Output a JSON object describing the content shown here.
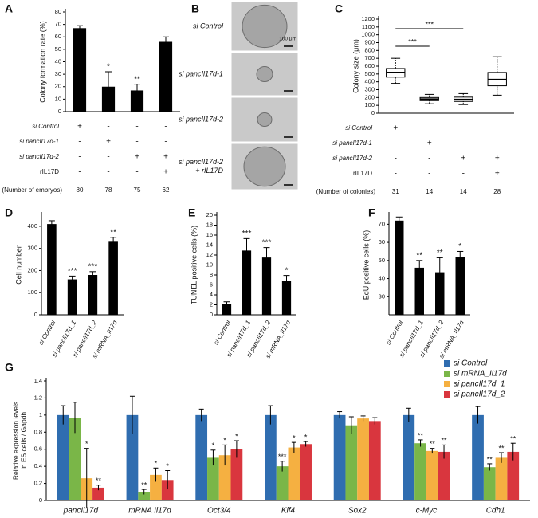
{
  "chart_data": [
    {
      "type": "bar",
      "label": "A",
      "ylabel": "Colony formation rate (%)",
      "color": "#000000",
      "values": [
        67,
        20,
        17,
        56
      ],
      "errors": [
        2,
        12,
        5,
        4
      ],
      "annotations": [
        null,
        "*",
        "**",
        null
      ],
      "ylim": [
        0,
        80
      ],
      "yticks": [
        0,
        10,
        20,
        30,
        40,
        50,
        60,
        70,
        80
      ],
      "conditions": [
        {
          "label": "si Control",
          "marks": [
            "+",
            "-",
            "-",
            "-"
          ]
        },
        {
          "label": "si pancIl17d-1",
          "marks": [
            "-",
            "+",
            "-",
            "-"
          ]
        },
        {
          "label": "si pancIl17d-2",
          "marks": [
            "-",
            "-",
            "+",
            "+"
          ]
        },
        {
          "label": "rIL17D",
          "marks": [
            "-",
            "-",
            "-",
            "+"
          ]
        }
      ],
      "count_label": "(Number of embryos)",
      "counts": [
        80,
        78,
        75,
        62
      ]
    },
    {
      "type": "image-grid",
      "label": "B",
      "scale_bar": "100 μm",
      "rows": [
        {
          "label": [
            "si Control"
          ]
        },
        {
          "label": [
            "si pancIl17d-1"
          ]
        },
        {
          "label": [
            "si pancIl17d-2"
          ]
        },
        {
          "label": [
            "si pancIl17d-2",
            "+ rIL17D"
          ]
        }
      ]
    },
    {
      "type": "box",
      "label": "C",
      "ylabel": "Colony size (μm)",
      "min": [
        380,
        120,
        110,
        230
      ],
      "q1": [
        460,
        160,
        150,
        350
      ],
      "median": [
        520,
        180,
        175,
        430
      ],
      "q3": [
        570,
        200,
        205,
        520
      ],
      "max": [
        700,
        240,
        250,
        720
      ],
      "brackets": [
        {
          "pair": [
            0,
            1
          ],
          "label": "***"
        },
        {
          "pair": [
            0,
            2
          ],
          "label": "***"
        }
      ],
      "ylim": [
        0,
        1200
      ],
      "yticks": [
        0,
        100,
        200,
        300,
        400,
        500,
        600,
        700,
        800,
        900,
        1000,
        1100,
        1200
      ],
      "conditions": [
        {
          "label": "si Control",
          "marks": [
            "+",
            "-",
            "-",
            "-"
          ]
        },
        {
          "label": "si pancIl17d-1",
          "marks": [
            "-",
            "+",
            "-",
            "-"
          ]
        },
        {
          "label": "si pancIl17d-2",
          "marks": [
            "-",
            "-",
            "+",
            "+"
          ]
        },
        {
          "label": "rIL17D",
          "marks": [
            "-",
            "-",
            "-",
            "+"
          ]
        }
      ],
      "count_label": "(Number of colonies)",
      "counts": [
        31,
        14,
        14,
        28
      ]
    },
    {
      "type": "bar",
      "label": "D",
      "ylabel": "Cell number",
      "color": "#000000",
      "categories": [
        "si Control",
        "si pancIl17d_1",
        "si pancIl17d_2",
        "si mRNA_Il17d"
      ],
      "values": [
        410,
        160,
        180,
        330
      ],
      "errors": [
        15,
        15,
        15,
        20
      ],
      "annotations": [
        null,
        "***",
        "***",
        "**"
      ],
      "ylim": [
        0,
        450
      ],
      "yticks": [
        0,
        100,
        200,
        300,
        400
      ]
    },
    {
      "type": "bar",
      "label": "E",
      "ylabel": "TUNEL positive cells (%)",
      "color": "#000000",
      "categories": [
        "si Control",
        "si pancIl17d_1",
        "si pancIl17d_2",
        "si mRNA_Il17d"
      ],
      "values": [
        2.2,
        12.9,
        11.5,
        6.8
      ],
      "errors": [
        0.4,
        2.4,
        2.0,
        1.1
      ],
      "annotations": [
        null,
        "***",
        "***",
        "*"
      ],
      "ylim": [
        0,
        20
      ],
      "yticks": [
        0,
        2,
        4,
        6,
        8,
        10,
        12,
        14,
        16,
        18,
        20
      ]
    },
    {
      "type": "bar",
      "label": "F",
      "ylabel": "EdU positive cells (%)",
      "color": "#000000",
      "categories": [
        "si Control",
        "si pancIl17d_1",
        "si pancIl17d_2",
        "si mRNA_Il17d"
      ],
      "values": [
        72,
        46,
        43.5,
        52
      ],
      "errors": [
        2,
        4,
        8,
        3
      ],
      "annotations": [
        null,
        "**",
        "**",
        "*"
      ],
      "ylim": [
        20,
        75
      ],
      "yticks": [
        30,
        40,
        50,
        60,
        70
      ]
    },
    {
      "type": "grouped-bar",
      "label": "G",
      "ylabel": [
        "Relative expression levels",
        "in ES cells / Gapdh"
      ],
      "legend": "upper right",
      "categories": [
        "pancIl17d",
        "mRNA Il17d",
        "Oct3/4",
        "Klf4",
        "Sox2",
        "c-Myc",
        "Cdh1"
      ],
      "ylim": [
        0,
        1.4
      ],
      "yticks": [
        0,
        0.2,
        0.4,
        0.6,
        0.8,
        1,
        1.2,
        1.4
      ],
      "series": [
        {
          "name": "si Control",
          "color": "#2f6db0",
          "values": [
            1,
            1,
            1,
            1,
            1,
            1,
            1
          ],
          "errors": [
            0.11,
            0.22,
            0.07,
            0.11,
            0.04,
            0.08,
            0.1
          ],
          "annotations": [
            null,
            null,
            null,
            null,
            null,
            null,
            null
          ]
        },
        {
          "name": "si mRNA_Il17d",
          "color": "#7ab648",
          "values": [
            0.97,
            0.1,
            0.5,
            0.4,
            0.88,
            0.67,
            0.39
          ],
          "errors": [
            0.18,
            0.03,
            0.09,
            0.06,
            0.1,
            0.04,
            0.04
          ],
          "annotations": [
            null,
            "**",
            "*",
            "***",
            null,
            "**",
            "**"
          ]
        },
        {
          "name": "si pancIl17d_1",
          "color": "#f5b041",
          "values": [
            0.26,
            0.3,
            0.53,
            0.62,
            0.96,
            0.58,
            0.5
          ],
          "errors": [
            0.35,
            0.08,
            0.12,
            0.06,
            0.03,
            0.03,
            0.06
          ],
          "annotations": [
            "*",
            "*",
            "*",
            "*",
            null,
            "**",
            "**"
          ]
        },
        {
          "name": "si pancIl17d_2",
          "color": "#d9363e",
          "values": [
            0.15,
            0.24,
            0.6,
            0.66,
            0.93,
            0.57,
            0.57
          ],
          "errors": [
            0.03,
            0.11,
            0.1,
            0.03,
            0.04,
            0.08,
            0.1
          ],
          "annotations": [
            "**",
            "*",
            "*",
            "*",
            null,
            "**",
            "**"
          ]
        }
      ]
    }
  ]
}
